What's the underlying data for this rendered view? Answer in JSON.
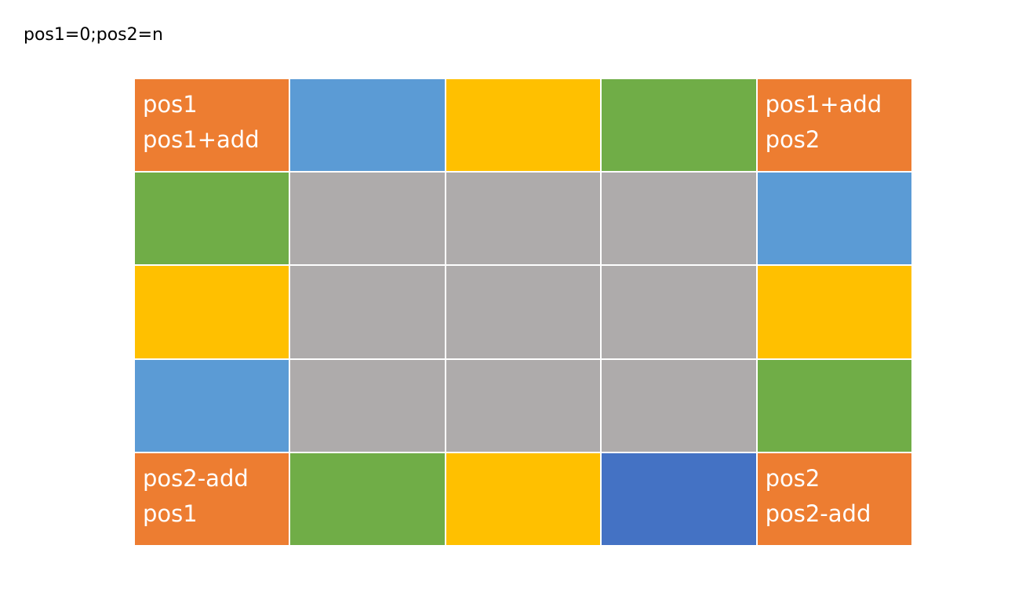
{
  "caption": "pos1=0;pos2=n",
  "colors": {
    "orange": "#ED7D31",
    "blue": "#5B9BD5",
    "yellow": "#FFC000",
    "green": "#70AD47",
    "gray": "#AEABAB",
    "darkblue": "#4472C4"
  },
  "grid": {
    "rows": [
      [
        {
          "color": "orange",
          "lines": [
            "pos1",
            "pos1+add"
          ]
        },
        {
          "color": "blue",
          "lines": []
        },
        {
          "color": "yellow",
          "lines": []
        },
        {
          "color": "green",
          "lines": []
        },
        {
          "color": "orange",
          "lines": [
            "pos1+add",
            "pos2"
          ]
        }
      ],
      [
        {
          "color": "green",
          "lines": []
        },
        {
          "color": "gray",
          "lines": []
        },
        {
          "color": "gray",
          "lines": []
        },
        {
          "color": "gray",
          "lines": []
        },
        {
          "color": "blue",
          "lines": []
        }
      ],
      [
        {
          "color": "yellow",
          "lines": []
        },
        {
          "color": "gray",
          "lines": []
        },
        {
          "color": "gray",
          "lines": []
        },
        {
          "color": "gray",
          "lines": []
        },
        {
          "color": "yellow",
          "lines": []
        }
      ],
      [
        {
          "color": "blue",
          "lines": []
        },
        {
          "color": "gray",
          "lines": []
        },
        {
          "color": "gray",
          "lines": []
        },
        {
          "color": "gray",
          "lines": []
        },
        {
          "color": "green",
          "lines": []
        }
      ],
      [
        {
          "color": "orange",
          "lines": [
            "pos2-add",
            "pos1"
          ]
        },
        {
          "color": "green",
          "lines": []
        },
        {
          "color": "yellow",
          "lines": []
        },
        {
          "color": "darkblue",
          "lines": []
        },
        {
          "color": "orange",
          "lines": [
            "pos2",
            "pos2-add"
          ]
        }
      ]
    ]
  }
}
